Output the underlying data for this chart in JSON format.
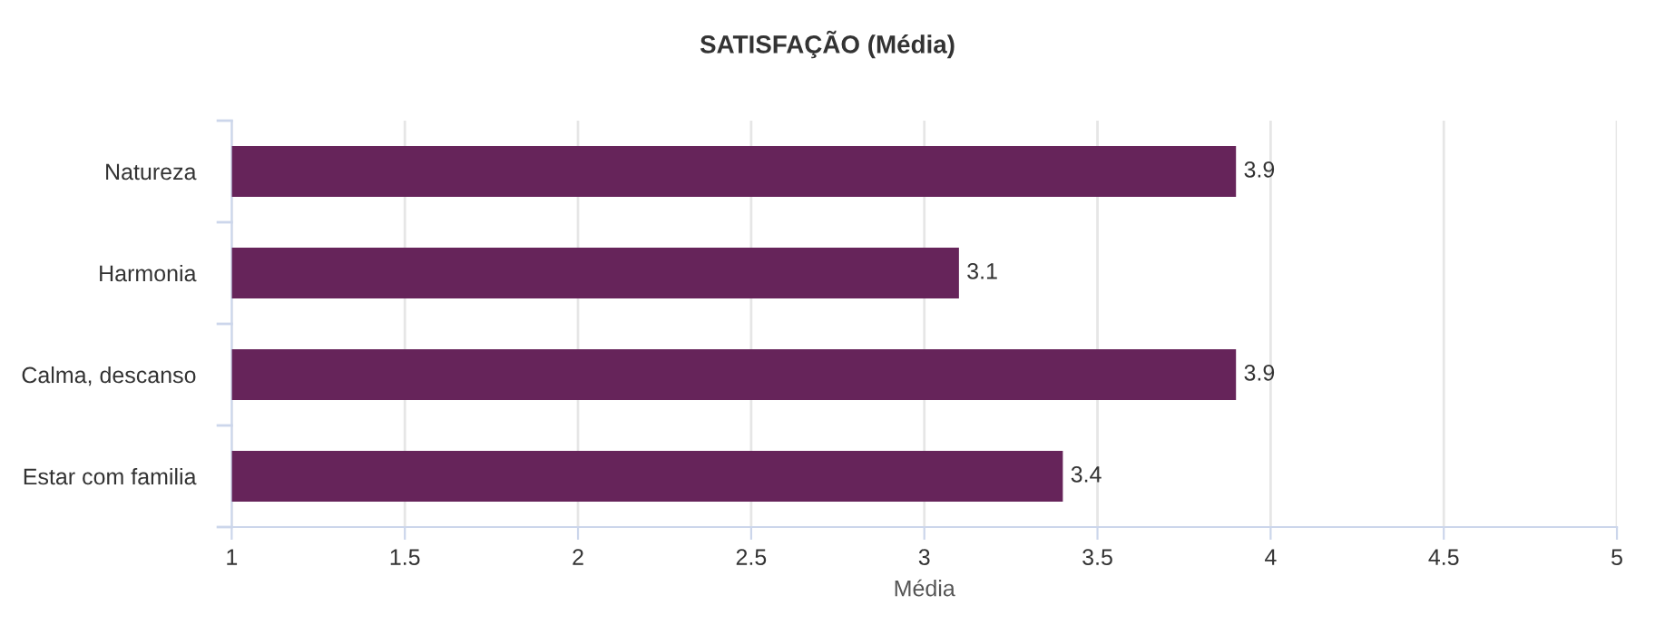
{
  "chart_data": {
    "type": "bar",
    "orientation": "horizontal",
    "title": "SATISFAÇÃO (Média)",
    "xlabel": "Média",
    "categories": [
      "Natureza",
      "Harmonia",
      "Calma, descanso",
      "Estar com familia"
    ],
    "values": [
      3.9,
      3.1,
      3.9,
      3.4
    ],
    "color": "#66245a",
    "xlim": [
      1,
      5
    ],
    "xticks": [
      1,
      1.5,
      2,
      2.5,
      3,
      3.5,
      4,
      4.5,
      5
    ],
    "grid": "x",
    "data_labels": true
  }
}
